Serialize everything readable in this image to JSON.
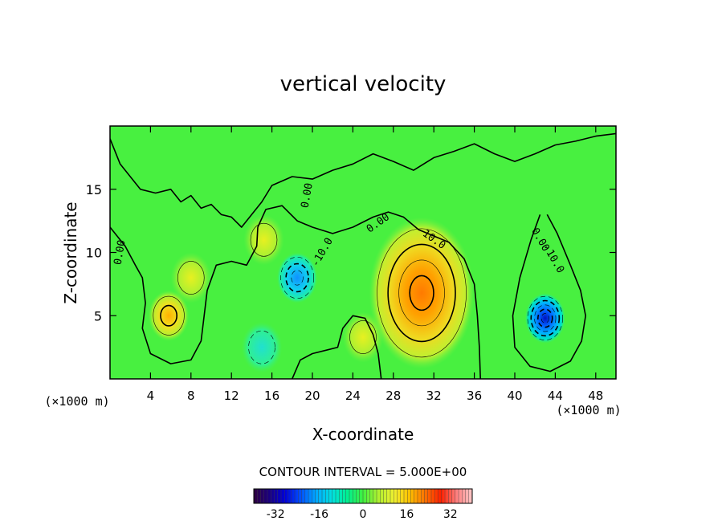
{
  "chart_data": {
    "type": "heatmap",
    "title": "vertical velocity",
    "xlabel": "X-coordinate",
    "ylabel": "Z-coordinate",
    "x_unit_left": "(×1000 m)",
    "x_unit_right": "(×1000 m)",
    "xlim": [
      0,
      50
    ],
    "ylim": [
      0,
      20
    ],
    "x_ticks": [
      4,
      8,
      12,
      16,
      20,
      24,
      28,
      32,
      36,
      40,
      44,
      48
    ],
    "x_tick_labels": [
      "4",
      "8",
      "12",
      "16",
      "20",
      "24",
      "28",
      "32",
      "36",
      "40",
      "44",
      "48"
    ],
    "y_ticks": [
      5,
      10,
      15
    ],
    "y_tick_labels": [
      "5",
      "10",
      "15"
    ],
    "contour_interval_text": "CONTOUR INTERVAL = 5.000E+00",
    "contour_labels": [
      {
        "text": "0.00",
        "x": 1.0,
        "y": 10.0,
        "angle": -80
      },
      {
        "text": "0.00",
        "x": 19.5,
        "y": 14.5,
        "angle": -80
      },
      {
        "text": "-10.0",
        "x": 21.0,
        "y": 10.0,
        "angle": -60
      },
      {
        "text": "0.00",
        "x": 26.5,
        "y": 12.3,
        "angle": -35
      },
      {
        "text": "10.0",
        "x": 32.0,
        "y": 11.0,
        "angle": 35
      },
      {
        "text": "0.00",
        "x": 42.5,
        "y": 11.0,
        "angle": 60
      },
      {
        "text": "-10.0",
        "x": 43.8,
        "y": 9.5,
        "angle": 60
      }
    ],
    "features": [
      {
        "kind": "max",
        "x": 30.8,
        "y": 6.8,
        "value": 24
      },
      {
        "kind": "max",
        "x": 5.8,
        "y": 5.0,
        "value": 14
      },
      {
        "kind": "max",
        "x": 25.0,
        "y": 3.3,
        "value": 9
      },
      {
        "kind": "max",
        "x": 8.0,
        "y": 8.0,
        "value": 8
      },
      {
        "kind": "max",
        "x": 15.2,
        "y": 11.0,
        "value": 6
      },
      {
        "kind": "min",
        "x": 43.0,
        "y": 4.8,
        "value": -28
      },
      {
        "kind": "min",
        "x": 18.5,
        "y": 8.0,
        "value": -15
      },
      {
        "kind": "min",
        "x": 15.0,
        "y": 2.5,
        "value": -6
      }
    ],
    "colorbar": {
      "min": -40,
      "max": 40,
      "ticks": [
        -32,
        -16,
        0,
        16,
        32
      ],
      "tick_labels": [
        "-32",
        "-16",
        "0",
        "16",
        "32"
      ],
      "colors": [
        "#300040",
        "#1a0080",
        "#0000d8",
        "#0050ff",
        "#00a8ff",
        "#00e0e0",
        "#00f090",
        "#40f040",
        "#b0f030",
        "#f0f030",
        "#ffc000",
        "#ff7000",
        "#ff2000",
        "#ff8080",
        "#ffc8c8"
      ]
    }
  }
}
